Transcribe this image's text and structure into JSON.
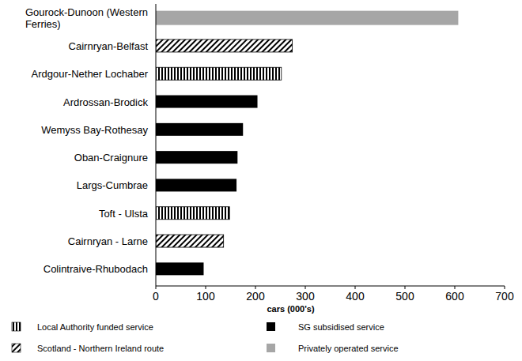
{
  "chart_data": {
    "type": "bar",
    "orientation": "horizontal",
    "stacked": true,
    "grid": false,
    "legend": "bottom",
    "xlabel": "cars (000's)",
    "categories": [
      "Gourock-Dunoon (Western Ferries)",
      "Cairnryan-Belfast",
      "Ardgour-Nether Lochaber",
      "Ardrossan-Brodick",
      "Wemyss Bay-Rothesay",
      "Oban-Craignure",
      "Largs-Cumbrae",
      "Toft - Ulsta",
      "Cairnryan - Larne",
      "Colintraive-Rhubodach"
    ],
    "series": [
      {
        "name": "Local Authority funded service",
        "color": "#000000",
        "marker": "vertical",
        "values": [
          null,
          null,
          252,
          null,
          null,
          null,
          null,
          148,
          null,
          null
        ]
      },
      {
        "name": "SG subsidised service",
        "color": "#000000",
        "marker": "solid",
        "values": [
          null,
          null,
          null,
          204,
          175,
          164,
          162,
          null,
          null,
          96
        ]
      },
      {
        "name": "Scotland - Northern Ireland route",
        "color": "#000000",
        "marker": "diagonal",
        "values": [
          null,
          274,
          null,
          null,
          null,
          null,
          null,
          null,
          136,
          null
        ]
      },
      {
        "name": "Privately operated service",
        "color": "#a6a6a6",
        "marker": "solid",
        "values": [
          607,
          null,
          null,
          null,
          null,
          null,
          null,
          null,
          null,
          null
        ]
      }
    ],
    "xlim": [
      0,
      700
    ],
    "xticks": [
      0,
      100,
      200,
      300,
      400,
      500,
      600,
      700
    ]
  }
}
